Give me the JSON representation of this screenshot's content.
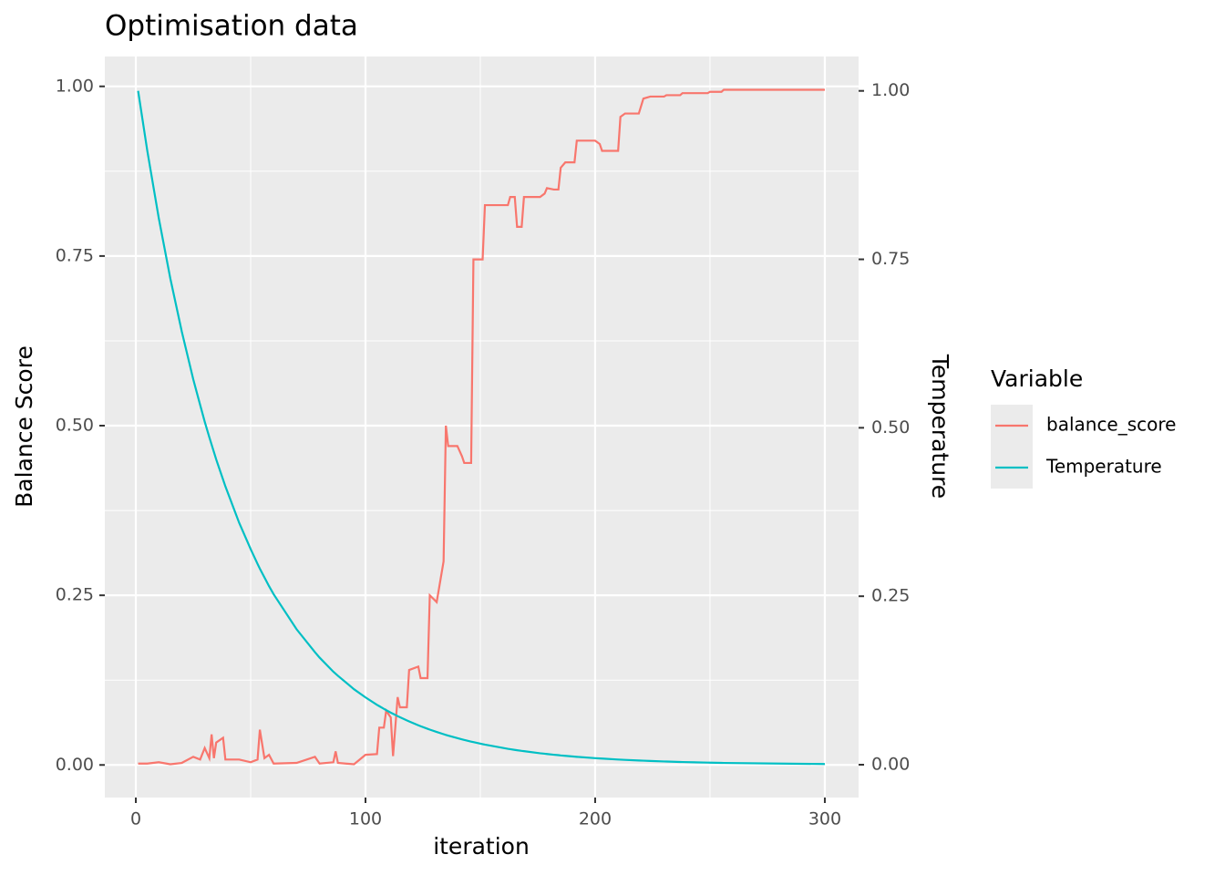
{
  "chart_data": {
    "type": "line",
    "title": "Optimisation data",
    "x_label": "iteration",
    "y_label": "Balance Score",
    "y2_label": "Temperature",
    "legend_title": "Variable",
    "legend_position": "right",
    "grid": true,
    "x": [
      1,
      5,
      10,
      15,
      20,
      25,
      28,
      30,
      32,
      33,
      34,
      35,
      38,
      39,
      45,
      50,
      53,
      54,
      56,
      58,
      60,
      70,
      78,
      80,
      86,
      87,
      88,
      95,
      100,
      105,
      106,
      108,
      109,
      111,
      112,
      114,
      115,
      118,
      119,
      123,
      124,
      127,
      128,
      131,
      134,
      135,
      136,
      140,
      142,
      143,
      146,
      147,
      151,
      152,
      162,
      163,
      165,
      166,
      168,
      169,
      176,
      178,
      179,
      182,
      184,
      185,
      187,
      191,
      192,
      200,
      202,
      203,
      210,
      211,
      213,
      219,
      221,
      224,
      230,
      231,
      237,
      238,
      249,
      250,
      255,
      256,
      300
    ],
    "series": [
      {
        "name": "balance_score",
        "color": "#f8766d",
        "values": [
          0.002,
          0.002,
          0.004,
          0.001,
          0.003,
          0.012,
          0.008,
          0.025,
          0.01,
          0.045,
          0.01,
          0.033,
          0.04,
          0.008,
          0.008,
          0.004,
          0.008,
          0.052,
          0.01,
          0.015,
          0.002,
          0.003,
          0.012,
          0.002,
          0.004,
          0.02,
          0.003,
          0.001,
          0.015,
          0.016,
          0.055,
          0.055,
          0.08,
          0.07,
          0.013,
          0.1,
          0.085,
          0.085,
          0.14,
          0.145,
          0.128,
          0.128,
          0.25,
          0.24,
          0.3,
          0.5,
          0.47,
          0.47,
          0.455,
          0.445,
          0.445,
          0.745,
          0.745,
          0.825,
          0.825,
          0.837,
          0.837,
          0.793,
          0.793,
          0.837,
          0.837,
          0.842,
          0.85,
          0.848,
          0.848,
          0.88,
          0.888,
          0.888,
          0.92,
          0.92,
          0.915,
          0.905,
          0.905,
          0.955,
          0.96,
          0.96,
          0.982,
          0.985,
          0.985,
          0.987,
          0.987,
          0.99,
          0.99,
          0.992,
          0.992,
          0.995,
          0.995
        ]
      },
      {
        "name": "Temperature",
        "color": "#00bfc4",
        "axis": "y2",
        "values": [
          1,
          0.911,
          0.811,
          0.722,
          0.643,
          0.572,
          0.534,
          0.509,
          0.486,
          0.475,
          0.464,
          0.453,
          0.423,
          0.413,
          0.359,
          0.32,
          0.298,
          0.291,
          0.278,
          0.265,
          0.253,
          0.201,
          0.167,
          0.159,
          0.138,
          0.135,
          0.132,
          0.112,
          0.0999,
          0.0889,
          0.0869,
          0.0829,
          0.081,
          0.0773,
          0.0756,
          0.0721,
          0.0705,
          0.0657,
          0.0642,
          0.0585,
          0.0571,
          0.0533,
          0.0521,
          0.0486,
          0.0453,
          0.0442,
          0.0432,
          0.0394,
          0.0376,
          0.0367,
          0.0343,
          0.0335,
          0.0305,
          0.0298,
          0.0236,
          0.0231,
          0.022,
          0.0215,
          0.0205,
          0.0201,
          0.017,
          0.0163,
          0.0159,
          0.0148,
          0.0142,
          0.0138,
          0.0132,
          0.012,
          0.0117,
          0.0097,
          0.0093,
          0.0091,
          0.0077,
          0.0075,
          0.0072,
          0.0063,
          0.006,
          0.0056,
          0.0048,
          0.0047,
          0.0041,
          0.004,
          0.0031,
          0.003,
          0.0027,
          0.0026,
          0.001
        ]
      }
    ],
    "xlim": [
      -13.5,
      314.7
    ],
    "xticks": [
      0,
      100,
      200,
      300
    ],
    "ylim": [
      -0.048,
      1.044
    ],
    "yticks": [
      {
        "value": 0,
        "label": "0.00"
      },
      {
        "value": 0.25,
        "label": "0.25"
      },
      {
        "value": 0.5,
        "label": "0.50"
      },
      {
        "value": 0.75,
        "label": "0.75"
      },
      {
        "value": 1,
        "label": "1.00"
      }
    ],
    "y2lim": [
      -0.0487,
      1.051
    ],
    "y2ticks": [
      {
        "value": 0,
        "label": "0.00"
      },
      {
        "value": 0.25,
        "label": "0.25"
      },
      {
        "value": 0.5,
        "label": "0.50"
      },
      {
        "value": 0.75,
        "label": "0.75"
      },
      {
        "value": 1,
        "label": "1.00"
      }
    ]
  }
}
